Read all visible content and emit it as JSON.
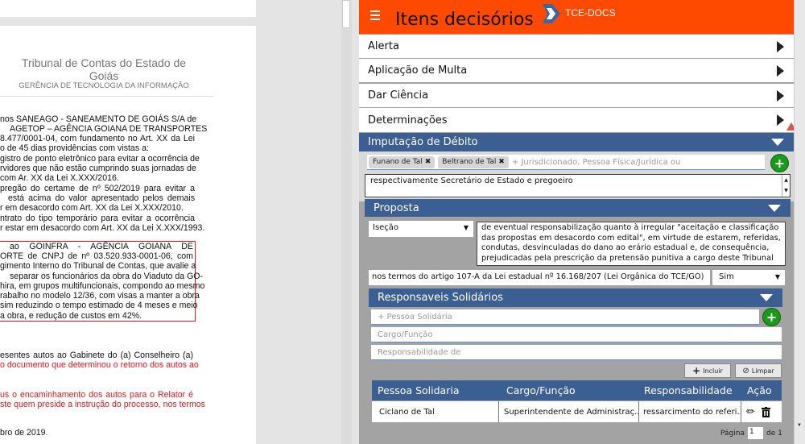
{
  "document": {
    "title": "Tribunal de Contas do Estado de Goiás",
    "subtitle": "GERÊNCIA DE TECNOLOGIA DA INFORMAÇÃO",
    "lines": [
      "nos SANEAGO - SANEAMENTO DE GOIÁS S/A de",
      "AGETOP – AGÊNCIA GOIANA DE TRANSPORTES",
      "8.477/0001-04, com fundamento no Art. XX da Lei",
      "o de 45 dias providências com vistas a:",
      "gistro de ponto eletrônico para evitar a ocorrência de",
      "rvidores que não estão cumprindo suas jornadas de",
      "com Ar. XX da Lei X.XXX/2016.",
      "pregão do certame de nº 502/2019 para evitar a",
      "está acima do valor apresentado pelos demais",
      "r em desacordo com Art. XX da Lei X.XXX/2010.",
      "ntrato do tipo temporário para evitar a ocorrência",
      "r estar em desacordo com Art. XX da Lei X.XXX/1993."
    ],
    "boxed_lines": [
      "ao GOINFRA - AGÊNCIA GOIANA DE",
      "ORTE de CNPJ de nº 03.520.933-0001-06, com",
      "gimento Interno do Tribunal de Contas, que avalie a",
      "separar os funcionários da obra do Viaduto da GO-",
      "hira, em grupos multifuncionais, compondo ao mesmo",
      "rabalho no modelo 12/36, com visas a manter a obra",
      "sim reduzindo o tempo estimado de 4 meses e meio",
      "a obra, e redução de custos em 42%."
    ],
    "tail_lines": [
      "esentes autos ao Gabinete do (a) Conselheiro (a)",
      "o documento que determinou o retorno dos autos ao",
      "us o encaminhamento dos autos para o Relator é",
      "ste quem preside a instrução do processo, nos termos",
      "bro de 2019",
      "."
    ]
  },
  "header": {
    "title": "Itens decisórios",
    "brand": "TCE-DOCS",
    "accent": "#fe4a00",
    "menu_icon": "hamburger-icon"
  },
  "items": [
    {
      "label": "Alerta"
    },
    {
      "label": "Aplicação de Multa"
    },
    {
      "label": "Dar Ciência"
    },
    {
      "label": "Determinações"
    }
  ],
  "imputacao": {
    "title": "Imputação de Débito",
    "tags": [
      "Funano de Tal",
      "Beltrano de Tal"
    ],
    "placeholder": "+ Jurisdicionado, Pessoa Física/Jurídica ou",
    "description": "respectivamente Secretário de Estado e pregoeiro"
  },
  "proposta": {
    "title": "Proposta",
    "type": "Iseção",
    "text": "de eventual responsabilização quanto à irregular \"aceitação e classificação das propostas em desacordo com edital\", em virtude de estarem, referidas, condutas, desvinculadas do dano ao erário estadual e, de consequência, prejudicadas pela prescrição da pretensão punitiva a cargo deste Tribunal",
    "basis": "nos termos do artigo 107-A da Lei estadual nº 16.168/207 (Lei Orgânica do TCE/GO)",
    "answer": "Sim"
  },
  "solidarios": {
    "title": "Responsaveis Solidários",
    "pessoa_placeholder": "+ Pessoa Solidária",
    "cargo_placeholder": "Cargo/Função",
    "resp_placeholder": "Responsabilidade de",
    "include_label": "Incluir",
    "clear_label": "Limpar",
    "columns": [
      "Pessoa Solidaria",
      "Cargo/Função",
      "Responsabilidade",
      "Ação"
    ],
    "rows": [
      {
        "pessoa": "Ciclano de Tal",
        "cargo": "Superintendente de Administraç...",
        "resp": "ressarcimento do referi..."
      }
    ],
    "page_label": "Página",
    "page": "1",
    "of_label": "de 1"
  },
  "colors": {
    "section_blue": "#3b5e93",
    "add_green": "#1a9a1a"
  }
}
